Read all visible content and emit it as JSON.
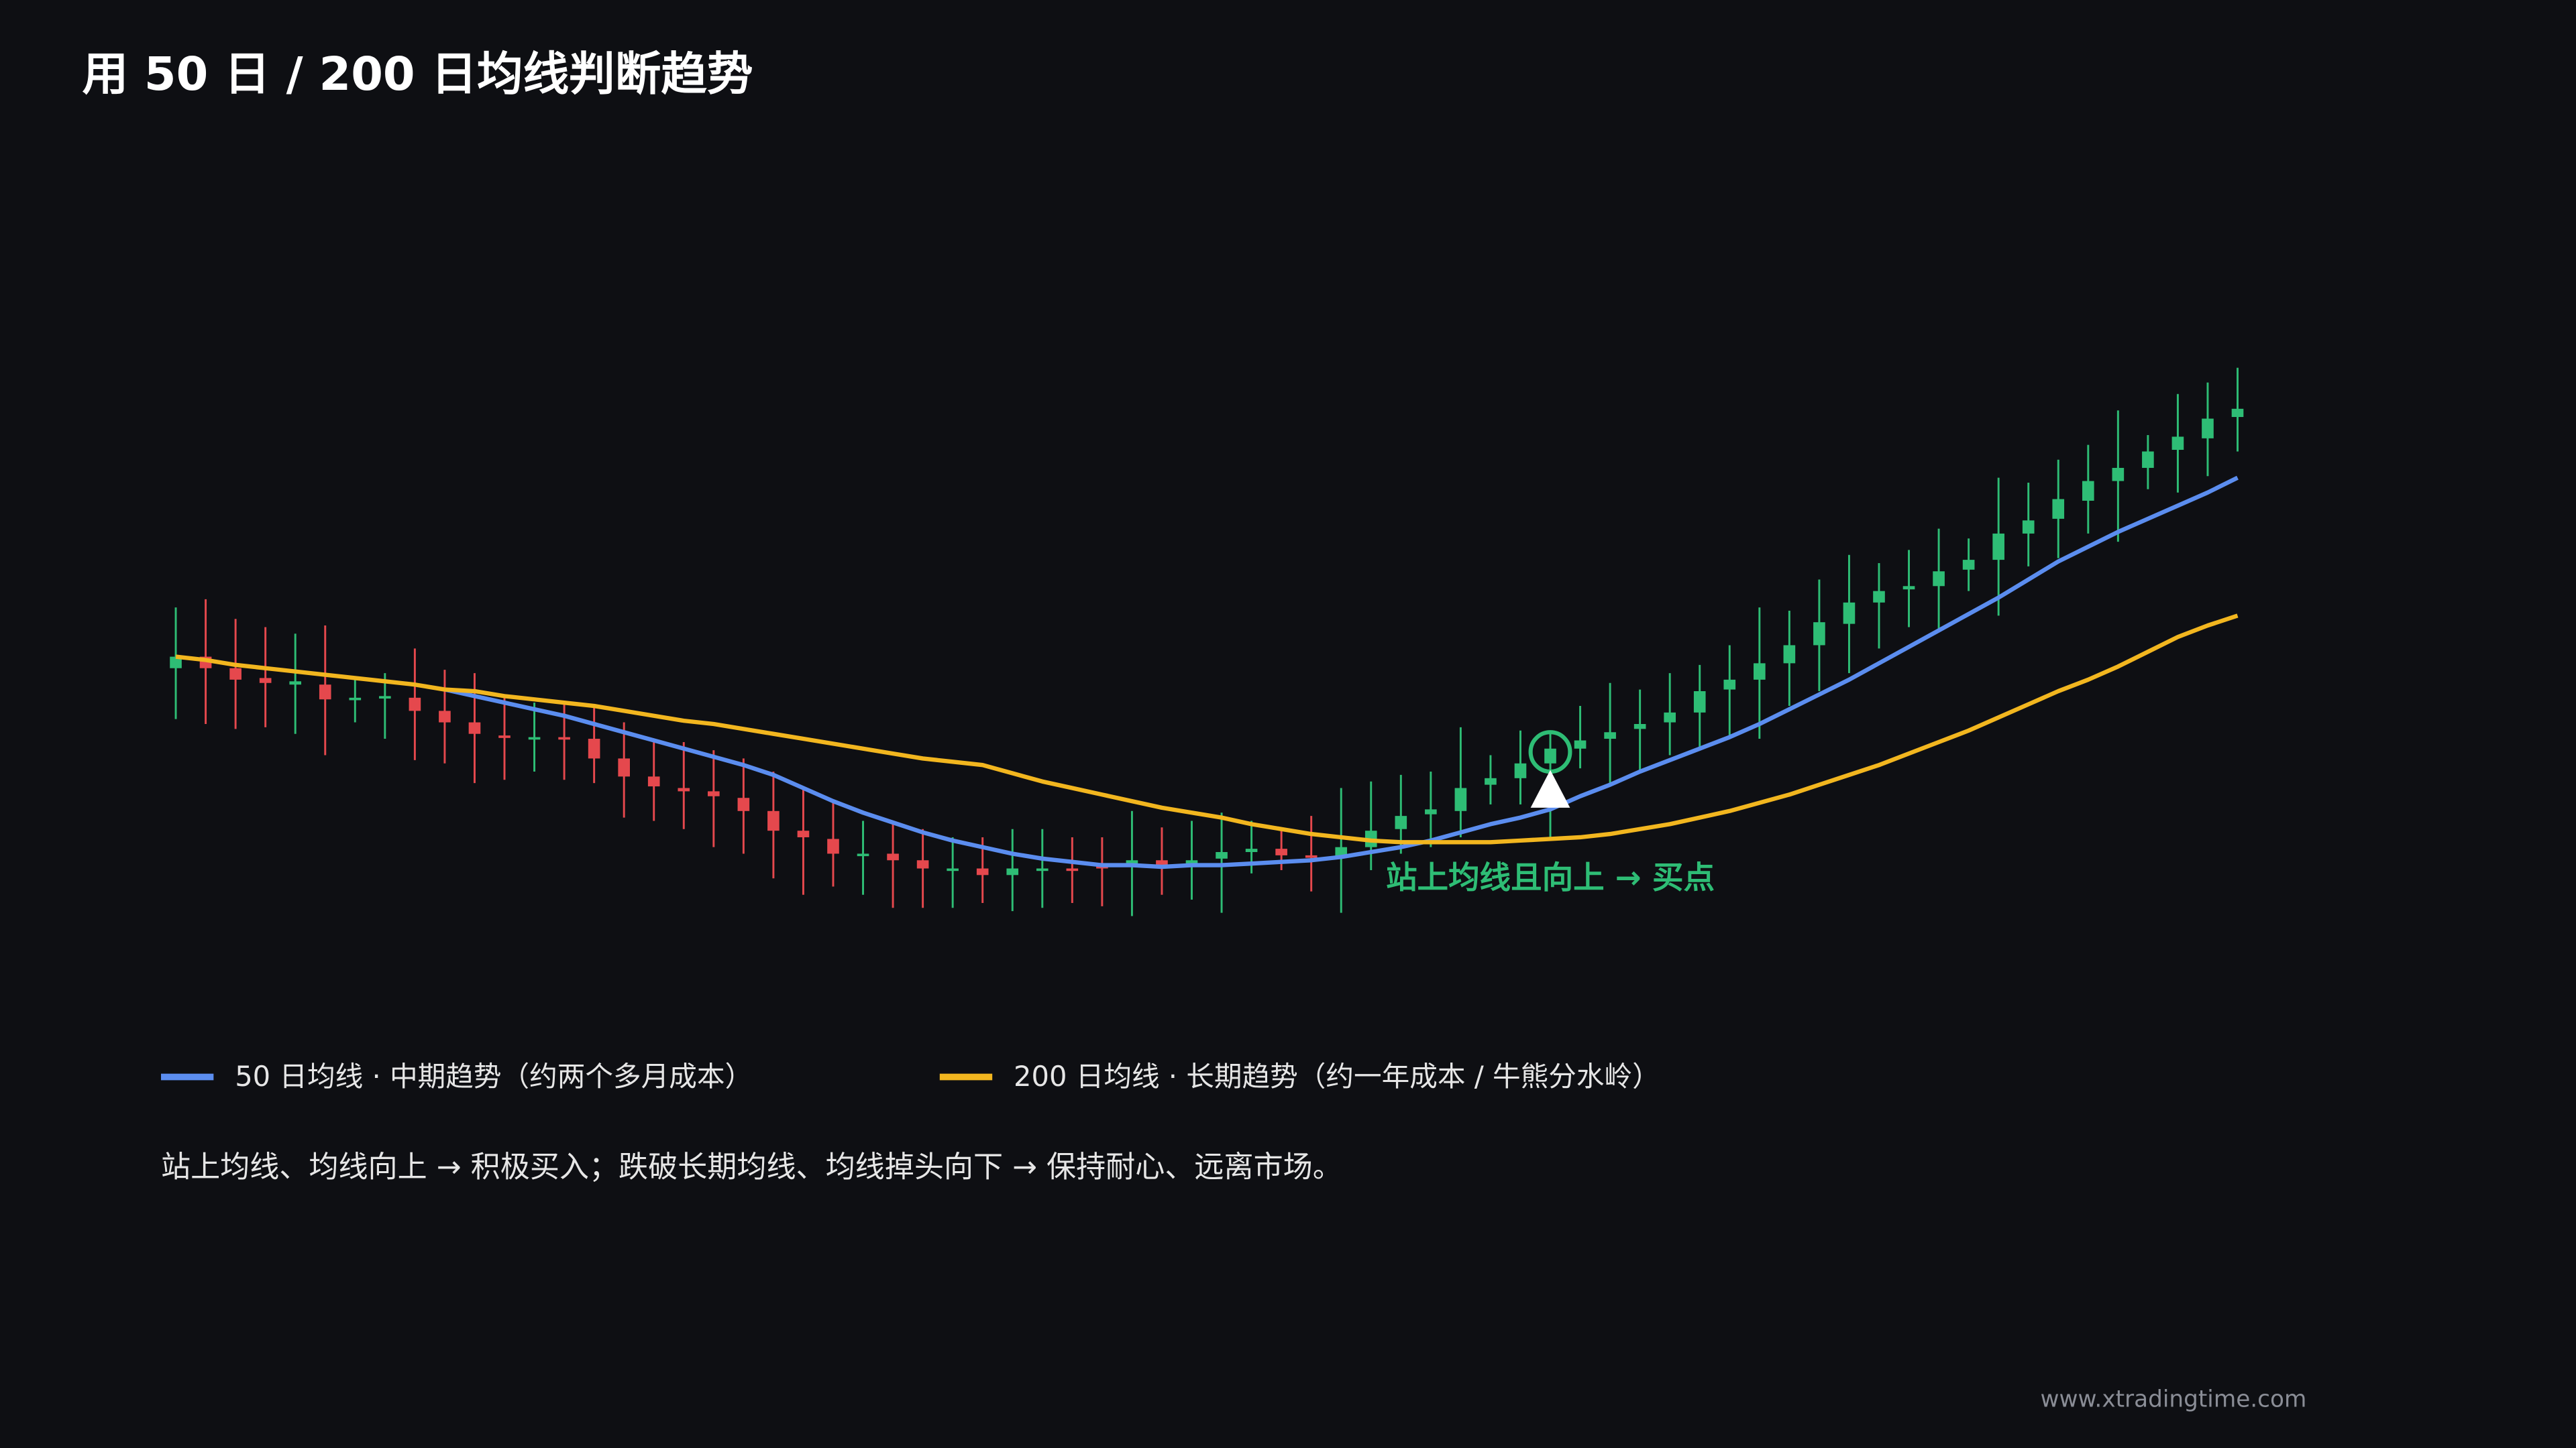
{
  "chart_data": {
    "type": "candlestick",
    "title": "用 50 日 / 200 日均线判断趋势",
    "ylim": [
      0,
      400
    ],
    "candles": {
      "up_color": "#2ebd75",
      "down_color": "#e5484d",
      "open": [
        193,
        200,
        193,
        187,
        183,
        183,
        174,
        175,
        175,
        167,
        160,
        152,
        150,
        151,
        150,
        138,
        127,
        120,
        118,
        114,
        106,
        94,
        89,
        79,
        80,
        76,
        70,
        71,
        67,
        70,
        71,
        73,
        73,
        76,
        73,
        77,
        81,
        83,
        79,
        78,
        84,
        95,
        104,
        106,
        122,
        126,
        135,
        144,
        150,
        156,
        160,
        166,
        180,
        186,
        196,
        207,
        220,
        233,
        241,
        243,
        253,
        259,
        275,
        284,
        295,
        307,
        315,
        326,
        333,
        346
      ],
      "high": [
        230,
        235,
        223,
        218,
        214,
        219,
        188,
        190,
        205,
        192,
        190,
        176,
        172,
        173,
        170,
        160,
        150,
        148,
        143,
        138,
        130,
        121,
        112,
        100,
        100,
        95,
        90,
        90,
        95,
        95,
        90,
        90,
        106,
        96,
        100,
        105,
        100,
        95,
        103,
        120,
        124,
        128,
        130,
        157,
        140,
        155,
        155,
        170,
        184,
        180,
        190,
        195,
        207,
        230,
        228,
        247,
        262,
        257,
        265,
        278,
        272,
        309,
        306,
        320,
        329,
        350,
        335,
        360,
        367,
        376
      ],
      "low": [
        162,
        159,
        156,
        157,
        153,
        140,
        160,
        150,
        137,
        135,
        123,
        125,
        130,
        125,
        123,
        102,
        100,
        95,
        84,
        80,
        65,
        55,
        60,
        55,
        47,
        47,
        47,
        50,
        45,
        47,
        50,
        48,
        42,
        55,
        52,
        44,
        68,
        70,
        57,
        44,
        70,
        80,
        84,
        90,
        110,
        110,
        90,
        132,
        122,
        130,
        140,
        145,
        150,
        150,
        170,
        179,
        190,
        205,
        218,
        215,
        240,
        225,
        255,
        260,
        275,
        270,
        302,
        300,
        310,
        325
      ],
      "close": [
        200,
        193,
        186,
        184,
        185,
        174,
        175,
        176,
        167,
        160,
        153,
        151,
        151,
        150,
        138,
        127,
        121,
        118,
        115,
        106,
        94,
        90,
        80,
        80,
        76,
        71,
        71,
        67,
        71,
        71,
        70,
        71,
        76,
        72,
        76,
        81,
        83,
        79,
        78,
        84,
        94,
        103,
        107,
        120,
        126,
        135,
        144,
        149,
        154,
        159,
        166,
        179,
        186,
        196,
        207,
        221,
        233,
        240,
        243,
        252,
        259,
        275,
        283,
        296,
        307,
        315,
        325,
        334,
        345,
        351
      ]
    },
    "series": [
      {
        "name": "50 日均线 · 中期趋势（约两个多月成本）",
        "color": "#5b8def",
        "values": [
          null,
          null,
          null,
          null,
          null,
          null,
          null,
          null,
          null,
          180,
          176,
          172,
          168,
          164,
          159,
          154,
          149,
          144,
          139,
          134,
          128,
          120,
          112,
          105,
          99,
          93,
          88,
          84,
          80,
          77,
          75,
          73,
          73,
          72,
          73,
          73,
          74,
          75,
          76,
          78,
          81,
          84,
          88,
          93,
          98,
          102,
          107,
          115,
          122,
          130,
          137,
          144,
          151,
          159,
          168,
          177,
          186,
          196,
          206,
          216,
          226,
          236,
          247,
          258,
          267,
          276,
          284,
          292,
          300,
          309
        ]
      },
      {
        "name": "200 日均线 · 长期趋势（约一年成本 / 牛熊分水岭）",
        "color": "#f2b61f",
        "values": [
          200,
          198,
          195,
          193,
          191,
          189,
          187,
          185,
          183,
          180,
          179,
          176,
          174,
          172,
          170,
          167,
          164,
          161,
          159,
          156,
          153,
          150,
          147,
          144,
          141,
          138,
          136,
          134,
          129,
          124,
          120,
          116,
          112,
          108,
          105,
          102,
          98,
          95,
          92,
          90,
          88,
          87,
          87,
          87,
          87,
          88,
          89,
          90,
          92,
          95,
          98,
          102,
          106,
          111,
          116,
          122,
          128,
          134,
          141,
          148,
          155,
          163,
          171,
          179,
          186,
          194,
          203,
          212,
          219,
          225
        ]
      }
    ],
    "annotation": {
      "text": "站上均线且向上 → 买点",
      "index": 46,
      "color": "#2ebd75"
    },
    "note": "站上均线、均线向上 → 积极买入；跌破长期均线、均线掉头向下 → 保持耐心、远离市场。",
    "source": "www.xtradingtime.com"
  }
}
